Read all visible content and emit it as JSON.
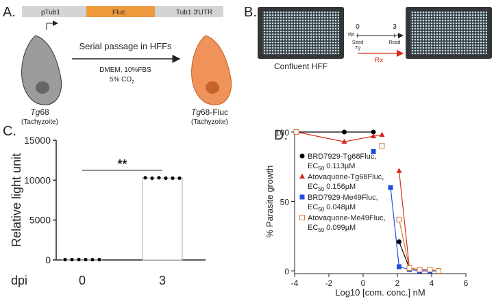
{
  "panels": {
    "a": {
      "label": "A.",
      "gene": [
        "pTub1",
        "Fluc",
        "Tub1 3'UTR"
      ],
      "arrow_text": "Serial passage in HFFs",
      "medium": "DMEM, 10%FBS",
      "co2": "5% CO",
      "co2_sub": "2",
      "left_italic": "Tg",
      "left_rest": "68",
      "left_stage": "(Tachyzoite)",
      "right_italic": "Tg",
      "right_rest": "68-Fluc",
      "right_stage": "(Tachyzoite)"
    },
    "b": {
      "label": "B.",
      "plate_label": "Confluent HFF",
      "dpi": "dpi",
      "start": "0",
      "end": "3",
      "seed": "Seed",
      "seed_sub": "Tg",
      "read": "Read",
      "treatment": "Rx"
    }
  },
  "chart_data": [
    {
      "type": "bar",
      "label": "C.",
      "ylabel": "Relative light unit",
      "xlabel": "dpi",
      "categories": [
        "0",
        "3"
      ],
      "values": [
        50,
        10270
      ],
      "points": [
        [
          50,
          40,
          60,
          50,
          40,
          50
        ],
        [
          10300,
          10250,
          10300,
          10250,
          10250,
          10250
        ]
      ],
      "ylim": [
        0,
        15000
      ],
      "yticks": [
        0,
        5000,
        10000,
        15000
      ],
      "significance": "**",
      "color": "#000000"
    },
    {
      "type": "scatter",
      "label": "D.",
      "ylabel": "% Parasite growth",
      "xlabel": "Log10 [com. conc.] nM",
      "ec_text": "EC",
      "ec_sub": "50",
      "x": [
        -3.9,
        -1.1,
        0.6,
        1.1,
        1.6,
        2.1,
        2.7,
        3.3,
        3.9,
        4.4
      ],
      "series": [
        {
          "name": "BRD7929-Tg68Fluc,",
          "ec50": "0.113µM",
          "color": "#000000",
          "marker": "circle",
          "values": [
            100,
            100,
            100,
            null,
            null,
            21,
            2,
            1,
            1,
            0
          ]
        },
        {
          "name": "Atovaquone-Tg68Fluc,",
          "ec50": "0.156µM",
          "color": "#d62a1a",
          "marker": "triangle",
          "values": [
            100,
            93,
            97,
            98,
            null,
            72,
            2,
            1,
            1,
            0
          ]
        },
        {
          "name": "BRD7929-Me49Fluc,",
          "ec50": "0.048µM",
          "color": "#1f4fe0",
          "marker": "square",
          "values": [
            100,
            null,
            86,
            null,
            60,
            3,
            1,
            0,
            0,
            0
          ]
        },
        {
          "name": "Atovaquone-Me49Fluc,",
          "ec50": "0.099µM",
          "color": "#d9743a",
          "marker": "open-square",
          "values": [
            100,
            null,
            null,
            90,
            null,
            37,
            2,
            1,
            1,
            0
          ]
        }
      ],
      "xlim": [
        -4,
        6
      ],
      "xticks": [
        -4,
        -2,
        0,
        2,
        4,
        6
      ],
      "ylim": [
        0,
        100
      ],
      "yticks": [
        0,
        50,
        100
      ]
    }
  ]
}
